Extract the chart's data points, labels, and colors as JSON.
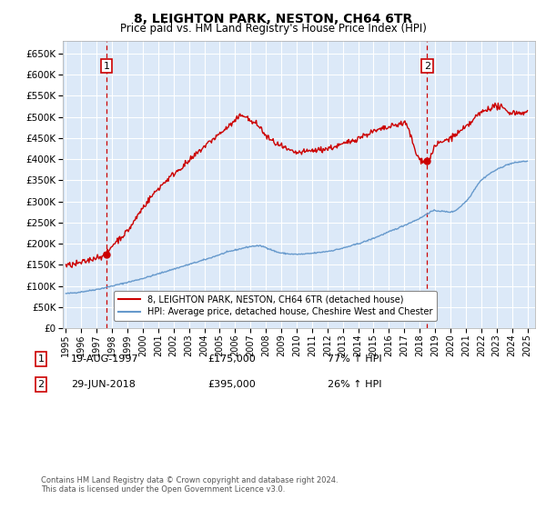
{
  "title": "8, LEIGHTON PARK, NESTON, CH64 6TR",
  "subtitle": "Price paid vs. HM Land Registry's House Price Index (HPI)",
  "yticks": [
    0,
    50000,
    100000,
    150000,
    200000,
    250000,
    300000,
    350000,
    400000,
    450000,
    500000,
    550000,
    600000,
    650000
  ],
  "ylim": [
    0,
    680000
  ],
  "xlim_start": 1994.8,
  "xlim_end": 2025.5,
  "bg_color": "#dce9f8",
  "grid_color": "#ffffff",
  "red_line_color": "#cc0000",
  "blue_line_color": "#6699cc",
  "sale1_x": 1997.63,
  "sale1_y": 175000,
  "sale1_label": "1",
  "sale2_x": 2018.49,
  "sale2_y": 395000,
  "sale2_label": "2",
  "vline_color": "#cc0000",
  "legend_label_red": "8, LEIGHTON PARK, NESTON, CH64 6TR (detached house)",
  "legend_label_blue": "HPI: Average price, detached house, Cheshire West and Chester",
  "annotation1_date": "19-AUG-1997",
  "annotation1_price": "£175,000",
  "annotation1_hpi": "77% ↑ HPI",
  "annotation2_date": "29-JUN-2018",
  "annotation2_price": "£395,000",
  "annotation2_hpi": "26% ↑ HPI",
  "footer": "Contains HM Land Registry data © Crown copyright and database right 2024.\nThis data is licensed under the Open Government Licence v3.0.",
  "xticks": [
    1995,
    1996,
    1997,
    1998,
    1999,
    2000,
    2001,
    2002,
    2003,
    2004,
    2005,
    2006,
    2007,
    2008,
    2009,
    2010,
    2011,
    2012,
    2013,
    2014,
    2015,
    2016,
    2017,
    2018,
    2019,
    2020,
    2021,
    2022,
    2023,
    2024,
    2025
  ],
  "hpi_knots_x": [
    1995,
    1997,
    1998,
    2000,
    2002,
    2004,
    2006,
    2007.5,
    2009,
    2010,
    2012,
    2014,
    2016,
    2018,
    2019,
    2020,
    2021,
    2022,
    2023,
    2024,
    2025
  ],
  "hpi_knots_y": [
    82000,
    92000,
    100000,
    118000,
    140000,
    162000,
    185000,
    195000,
    178000,
    175000,
    182000,
    200000,
    228000,
    260000,
    278000,
    275000,
    300000,
    350000,
    375000,
    390000,
    395000
  ],
  "red_knots_x": [
    1995,
    1996,
    1997,
    1997.63,
    1998,
    1999,
    2000,
    2001,
    2002,
    2003,
    2004,
    2005,
    2006,
    2006.5,
    2007,
    2007.5,
    2008,
    2009,
    2010,
    2011,
    2012,
    2013,
    2014,
    2015,
    2016,
    2017,
    2018,
    2018.49,
    2019,
    2020,
    2021,
    2022,
    2023,
    2024,
    2025
  ],
  "red_knots_y": [
    148000,
    155000,
    168000,
    175000,
    195000,
    230000,
    285000,
    330000,
    365000,
    395000,
    430000,
    460000,
    490000,
    505000,
    490000,
    480000,
    455000,
    430000,
    415000,
    420000,
    425000,
    435000,
    450000,
    465000,
    475000,
    485000,
    400000,
    395000,
    430000,
    450000,
    475000,
    510000,
    525000,
    510000,
    510000
  ]
}
